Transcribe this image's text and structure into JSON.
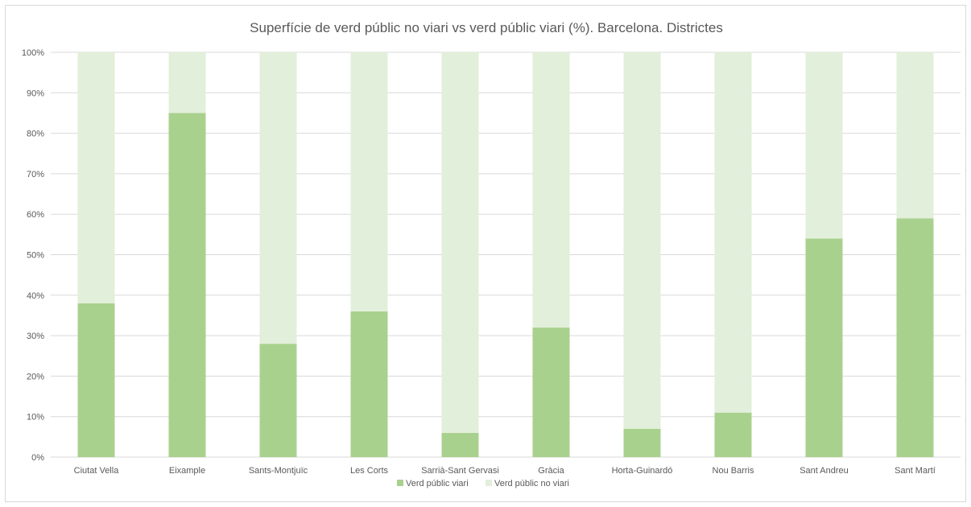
{
  "chart_data": {
    "type": "bar",
    "stacked": true,
    "normalized": true,
    "title": "Superfície de verd públic no viari vs verd públic viari (%). Barcelona. Districtes",
    "xlabel": "",
    "ylabel": "",
    "ylim": [
      0,
      100
    ],
    "yticks": [
      "0%",
      "10%",
      "20%",
      "30%",
      "40%",
      "50%",
      "60%",
      "70%",
      "80%",
      "90%",
      "100%"
    ],
    "grid": true,
    "legend_position": "bottom",
    "categories": [
      "Ciutat Vella",
      "Eixample",
      "Sants-Montjuïc",
      "Les Corts",
      "Sarrià-Sant Gervasi",
      "Gràcia",
      "Horta-Guinardó",
      "Nou Barris",
      "Sant Andreu",
      "Sant Martí"
    ],
    "series": [
      {
        "name": "Verd públic viari",
        "color": "#a9d18e",
        "values": [
          38,
          85,
          28,
          36,
          6,
          32,
          7,
          11,
          54,
          59
        ]
      },
      {
        "name": "Verd públic no viari",
        "color": "#e2efda",
        "values": [
          62,
          15,
          72,
          64,
          94,
          68,
          93,
          89,
          46,
          41
        ]
      }
    ]
  }
}
